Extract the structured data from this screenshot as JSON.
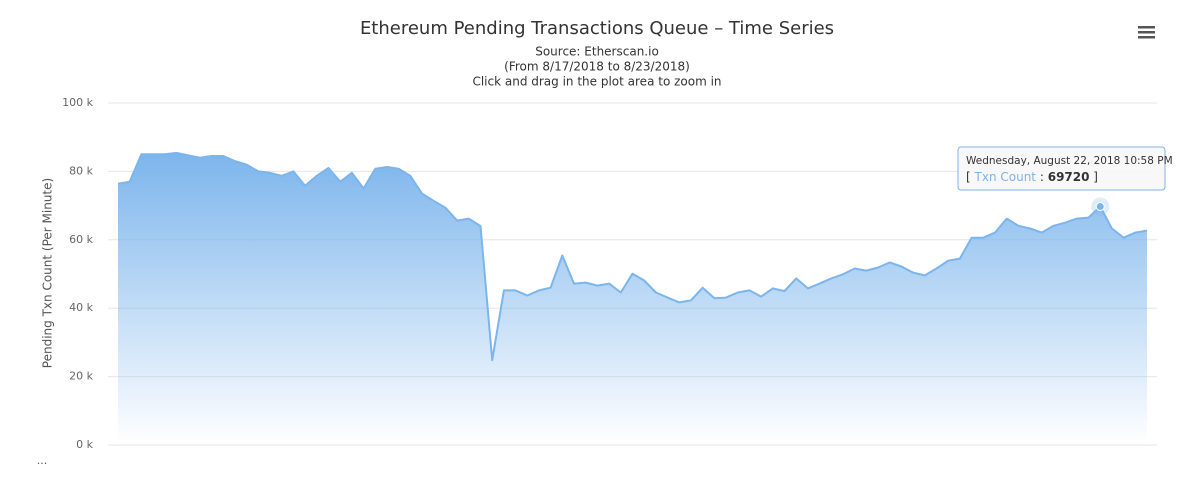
{
  "chart_data": {
    "type": "area",
    "title": "Ethereum Pending Transactions Queue – Time Series",
    "subtitle": [
      "Source: Etherscan.io",
      "(From 8/17/2018 to 8/23/2018)",
      "Click and drag in the plot area to zoom in"
    ],
    "y_label": "Pending Txn Count (Per Minute)",
    "series": [
      {
        "name": "Txn Count",
        "color": "#7cb5ec",
        "values": [
          76400,
          77000,
          85000,
          85000,
          85000,
          85400,
          84700,
          84000,
          84500,
          84500,
          83000,
          82000,
          80000,
          79600,
          78700,
          80000,
          75800,
          78700,
          81000,
          77000,
          79600,
          75000,
          80800,
          81300,
          80800,
          78700,
          73500,
          71400,
          69400,
          65600,
          66200,
          64000,
          24800,
          45200,
          45200,
          43700,
          45200,
          46000,
          55400,
          47200,
          47500,
          46600,
          47200,
          44600,
          50100,
          48100,
          44600,
          43100,
          41700,
          42300,
          46000,
          42900,
          43100,
          44600,
          45200,
          43400,
          45800,
          45000,
          48700,
          45800,
          47200,
          48700,
          49900,
          51600,
          51000,
          51900,
          53400,
          52200,
          50400,
          49600,
          51600,
          53900,
          54500,
          60600,
          60600,
          62100,
          66200,
          64100,
          63300,
          62100,
          64100,
          65000,
          66200,
          66500,
          69720,
          63300,
          60600,
          62100,
          62700
        ]
      }
    ],
    "ylim": [
      0,
      100000
    ],
    "yticks": [
      {
        "value": 0,
        "label": "0 k"
      },
      {
        "value": 20000,
        "label": "20 k"
      },
      {
        "value": 40000,
        "label": "40 k"
      },
      {
        "value": 60000,
        "label": "60 k"
      },
      {
        "value": 80000,
        "label": "80 k"
      },
      {
        "value": 100000,
        "label": "100 k"
      }
    ],
    "grid": true,
    "tooltip": {
      "header": "Wednesday, August 22, 2018 10:58 PM",
      "prefix": "[",
      "separator": ":",
      "suffix": "]",
      "value": 69720
    },
    "footer": "..."
  }
}
